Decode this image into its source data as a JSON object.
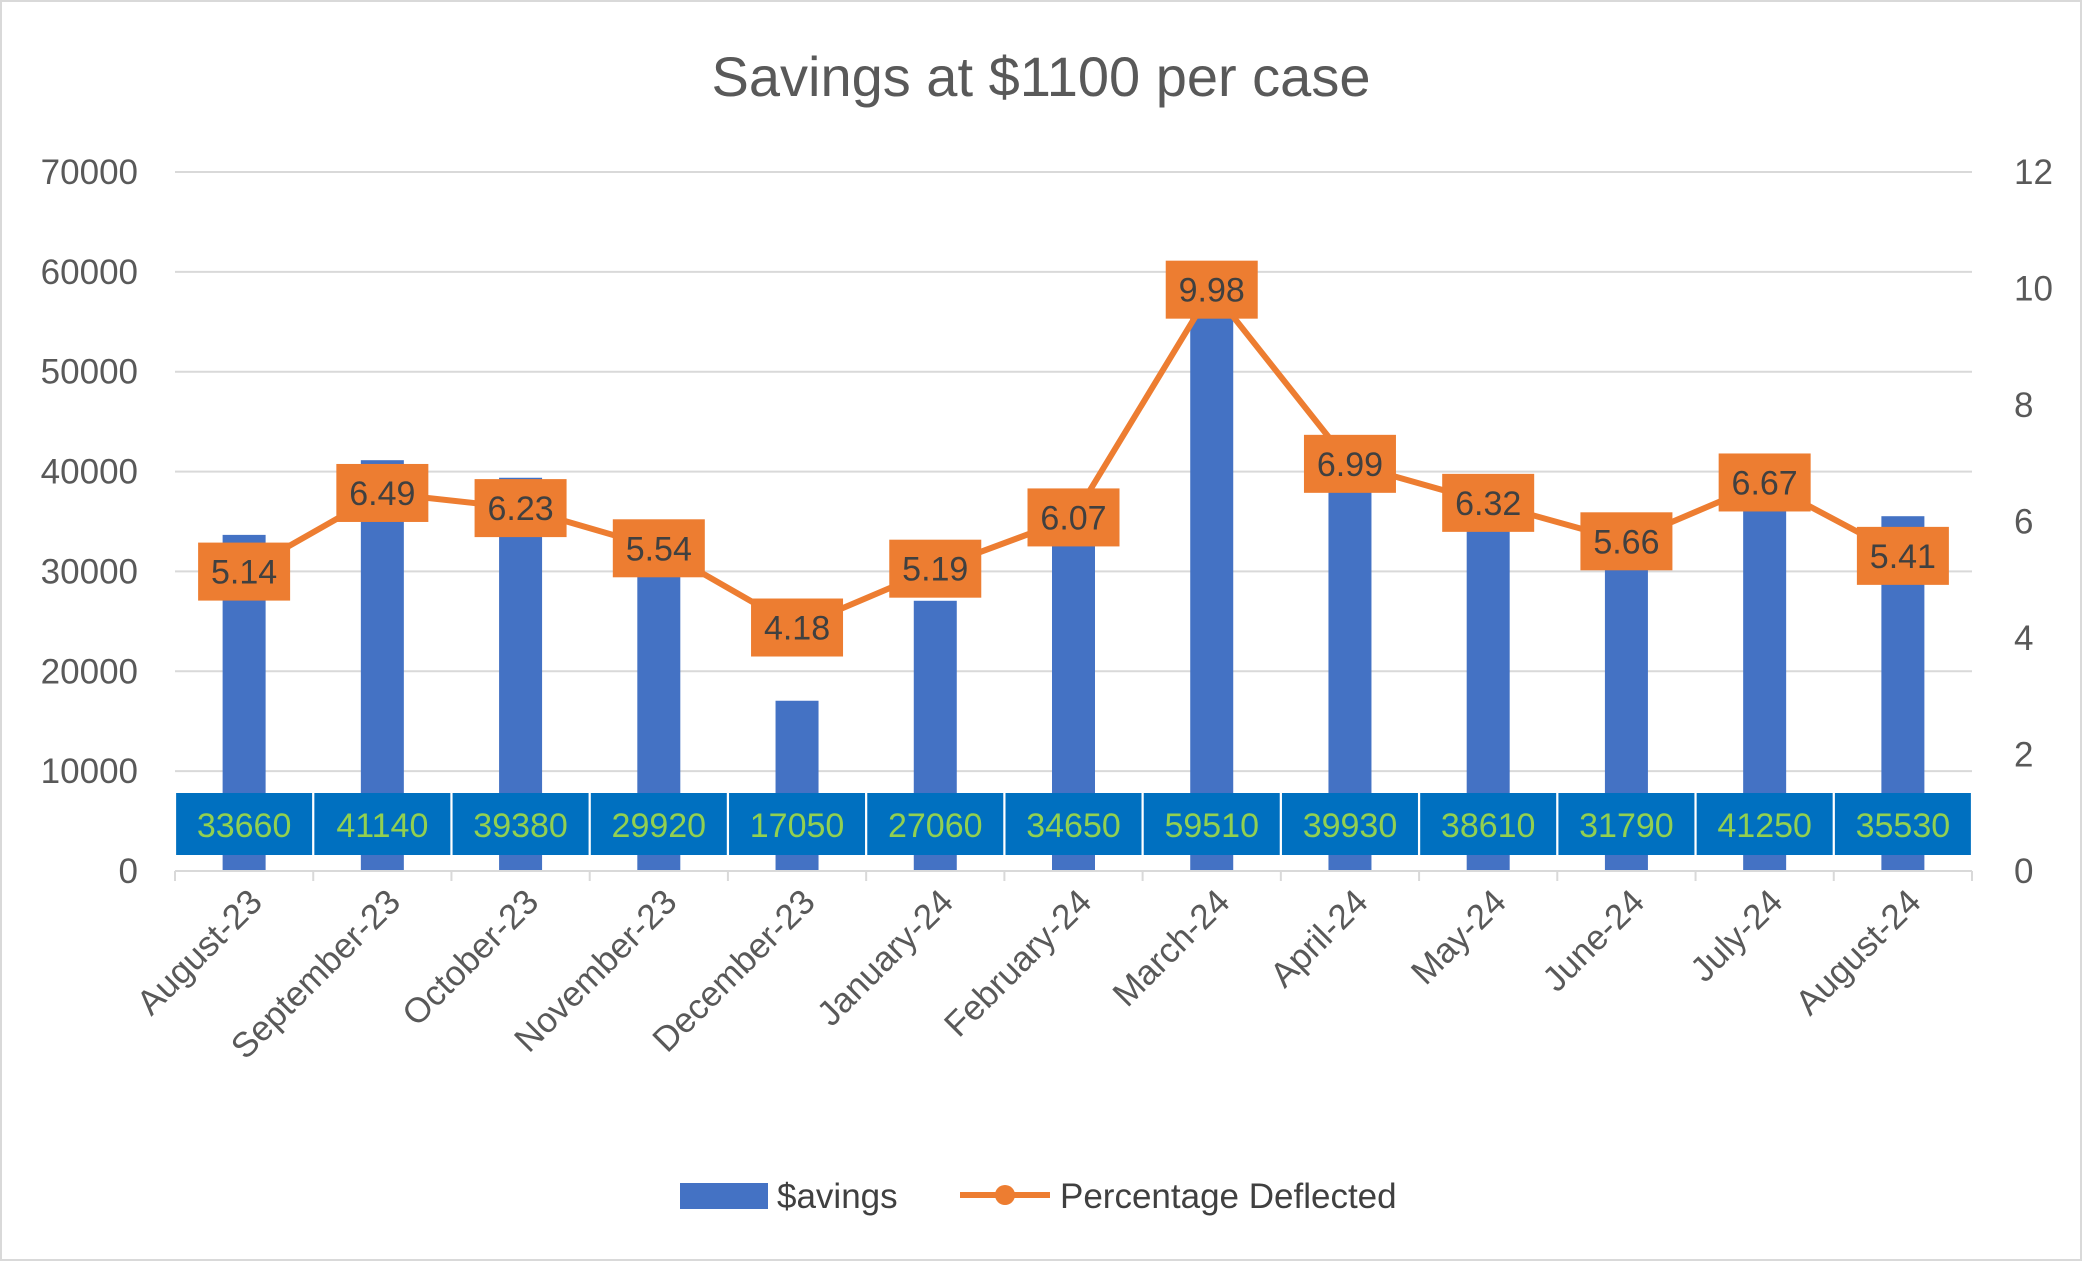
{
  "chart_data": {
    "type": "bar",
    "title": "Savings at $1100 per case",
    "categories": [
      "August-23",
      "September-23",
      "October-23",
      "November-23",
      "December-23",
      "January-24",
      "February-24",
      "March-24",
      "April-24",
      "May-24",
      "June-24",
      "July-24",
      "August-24"
    ],
    "series": [
      {
        "name": "$avings",
        "type": "bar",
        "axis": "left",
        "values": [
          33660,
          41140,
          39380,
          29920,
          17050,
          27060,
          34650,
          59510,
          39930,
          38610,
          31790,
          41250,
          35530
        ],
        "labels": [
          "33660",
          "41140",
          "39380",
          "29920",
          "17050",
          "27060",
          "34650",
          "59510",
          "39930",
          "38610",
          "31790",
          "41250",
          "35530"
        ]
      },
      {
        "name": "Percentage Deflected",
        "type": "line",
        "axis": "right",
        "values": [
          5.14,
          6.49,
          6.23,
          5.54,
          4.18,
          5.19,
          6.07,
          9.98,
          6.99,
          6.32,
          5.66,
          6.67,
          5.41
        ],
        "labels": [
          "5.14",
          "6.49",
          "6.23",
          "5.54",
          "4.18",
          "5.19",
          "6.07",
          "9.98",
          "6.99",
          "6.32",
          "5.66",
          "6.67",
          "5.41"
        ]
      }
    ],
    "y_left": {
      "min": 0,
      "max": 70000,
      "ticks": [
        "0",
        "10000",
        "20000",
        "30000",
        "40000",
        "50000",
        "60000",
        "70000"
      ]
    },
    "y_right": {
      "min": 0,
      "max": 12,
      "ticks": [
        "0",
        "2",
        "4",
        "6",
        "8",
        "10",
        "12"
      ]
    },
    "grid": true,
    "legend": "bottom",
    "colors": {
      "bar": "#4472c4",
      "line": "#ed7d31",
      "bar_label_bg": "#0070c0",
      "bar_label_text": "#92d050",
      "grid": "#d9d9d9"
    }
  }
}
